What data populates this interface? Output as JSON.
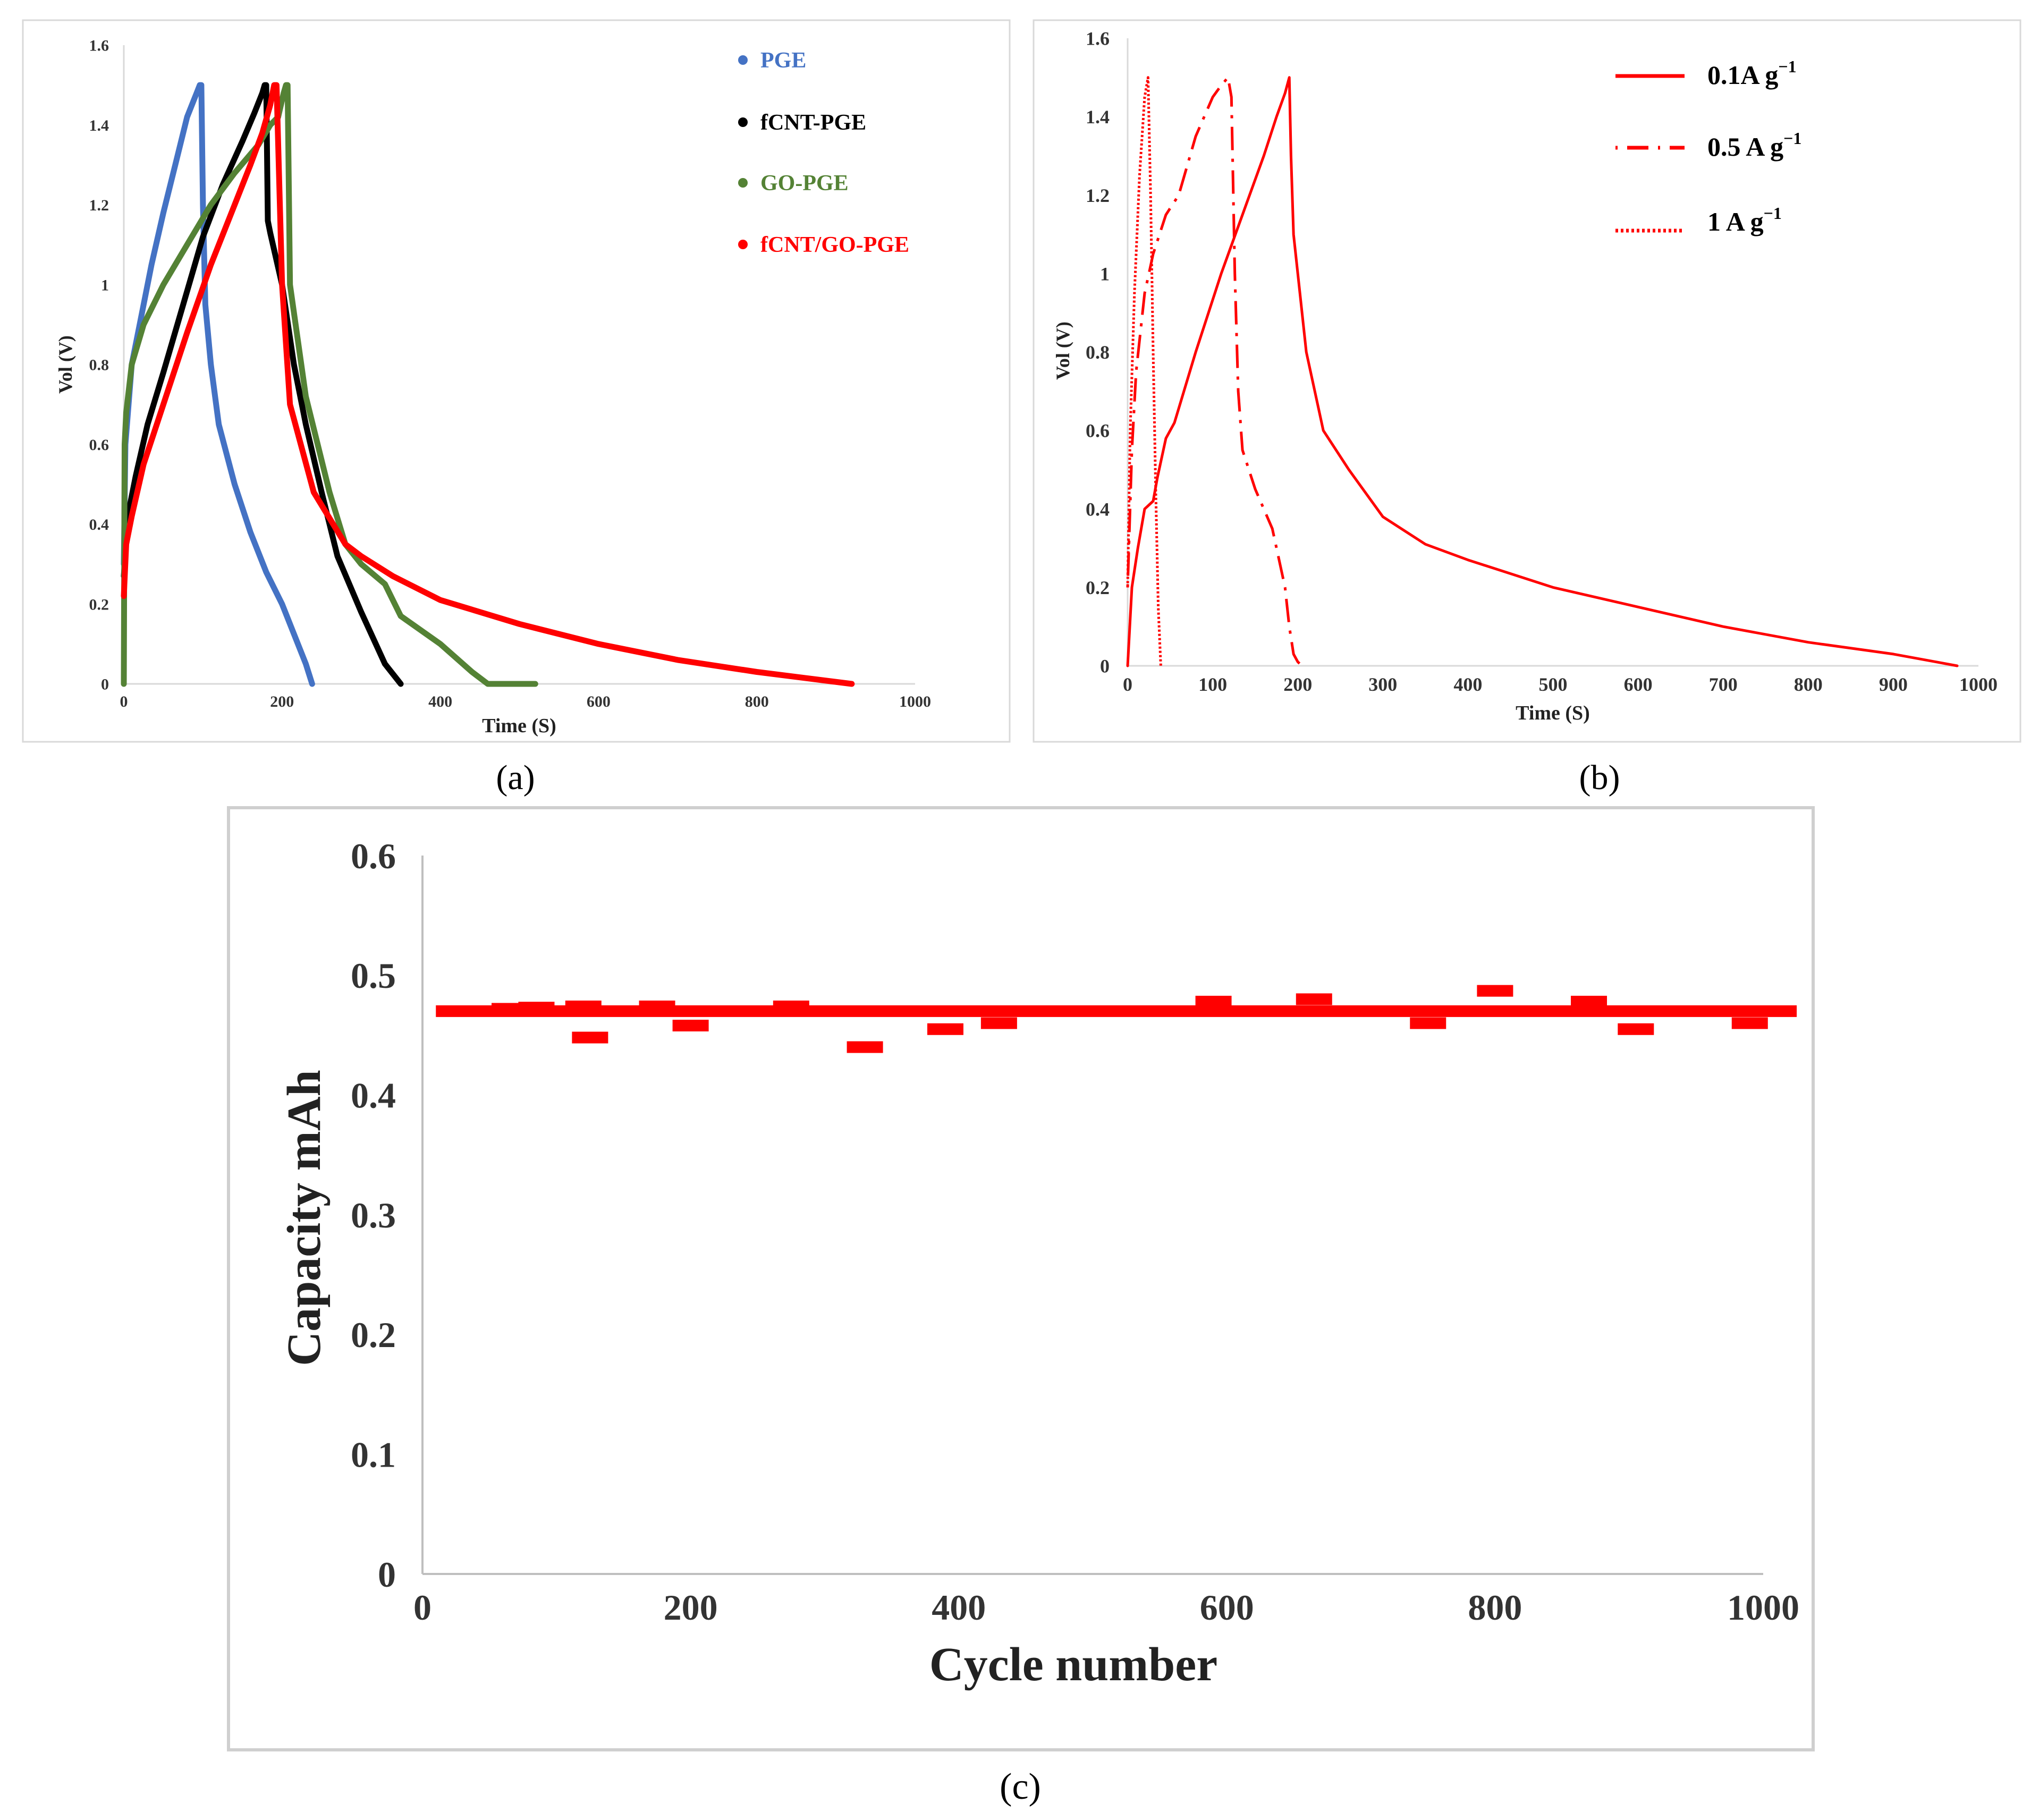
{
  "colors": {
    "pge": "#4472c4",
    "fcnt_pge": "#000000",
    "go_pge": "#548235",
    "fcnt_go_pge": "#ff0000",
    "rate": "#ff0000",
    "capacity": "#ff0000"
  },
  "panels": {
    "a_label": "(a)",
    "b_label": "(b)",
    "c_label": "(c)"
  },
  "chart_data": [
    {
      "id": "a",
      "type": "line",
      "title": "",
      "xlabel": "Time (S)",
      "ylabel": "Vol (V)",
      "xlim": [
        0,
        1000
      ],
      "ylim": [
        0,
        1.6
      ],
      "xticks": [
        "0",
        "200",
        "400",
        "600",
        "800",
        "1000"
      ],
      "xtick_values": [
        0,
        200,
        400,
        600,
        800,
        1000
      ],
      "yticks": [
        "0",
        "0.2",
        "0.4",
        "0.6",
        "0.8",
        "1",
        "1.2",
        "1.4",
        "1.6"
      ],
      "ytick_values": [
        0,
        0.2,
        0.4,
        0.6,
        0.8,
        1.0,
        1.2,
        1.4,
        1.6
      ],
      "legend_position": "top-right",
      "series": [
        {
          "name": "PGE",
          "color": "#4472c4",
          "x": [
            0,
            2,
            10,
            20,
            35,
            50,
            65,
            80,
            88,
            92,
            96,
            98,
            100,
            103,
            110,
            120,
            140,
            160,
            180,
            200,
            220,
            230,
            238
          ],
          "y": [
            0.3,
            0.6,
            0.8,
            0.9,
            1.05,
            1.18,
            1.3,
            1.42,
            1.46,
            1.48,
            1.5,
            1.5,
            1.2,
            0.95,
            0.8,
            0.65,
            0.5,
            0.38,
            0.28,
            0.2,
            0.1,
            0.05,
            0
          ]
        },
        {
          "name": "fCNT-PGE",
          "color": "#000000",
          "x": [
            0,
            5,
            15,
            30,
            50,
            75,
            100,
            125,
            150,
            165,
            175,
            178,
            180,
            182,
            185,
            200,
            215,
            230,
            250,
            270,
            300,
            330,
            350
          ],
          "y": [
            0.27,
            0.42,
            0.52,
            0.65,
            0.78,
            0.95,
            1.12,
            1.25,
            1.36,
            1.43,
            1.48,
            1.5,
            1.5,
            1.16,
            1.13,
            1.0,
            0.8,
            0.65,
            0.48,
            0.32,
            0.18,
            0.05,
            0
          ]
        },
        {
          "name": "GO-PGE",
          "color": "#548235",
          "x": [
            0,
            1,
            3,
            10,
            25,
            50,
            80,
            110,
            140,
            170,
            185,
            195,
            202,
            205,
            207,
            210,
            230,
            260,
            280,
            300,
            330,
            350,
            400,
            440,
            460,
            500,
            520
          ],
          "y": [
            0,
            0.6,
            0.68,
            0.8,
            0.9,
            1.0,
            1.1,
            1.2,
            1.28,
            1.35,
            1.4,
            1.42,
            1.48,
            1.5,
            1.5,
            1.0,
            0.72,
            0.48,
            0.35,
            0.3,
            0.25,
            0.17,
            0.1,
            0.03,
            0.0,
            0.0,
            0.0
          ]
        },
        {
          "name": "fCNT/GO-PGE",
          "color": "#ff0000",
          "x": [
            0,
            3,
            10,
            25,
            50,
            80,
            110,
            140,
            160,
            175,
            185,
            190,
            193,
            200,
            210,
            240,
            280,
            300,
            340,
            400,
            500,
            600,
            700,
            800,
            880,
            920
          ],
          "y": [
            0.22,
            0.35,
            0.42,
            0.55,
            0.7,
            0.88,
            1.05,
            1.2,
            1.3,
            1.38,
            1.45,
            1.5,
            1.5,
            1.0,
            0.7,
            0.48,
            0.35,
            0.32,
            0.27,
            0.21,
            0.15,
            0.1,
            0.06,
            0.03,
            0.01,
            0
          ]
        }
      ]
    },
    {
      "id": "b",
      "type": "line",
      "title": "",
      "xlabel": "Time (S)",
      "ylabel": "Vol (V)",
      "xlim": [
        0,
        1000
      ],
      "ylim": [
        0,
        1.6
      ],
      "xticks": [
        "0",
        "100",
        "200",
        "300",
        "400",
        "500",
        "600",
        "700",
        "800",
        "900",
        "1000"
      ],
      "xtick_values": [
        0,
        100,
        200,
        300,
        400,
        500,
        600,
        700,
        800,
        900,
        1000
      ],
      "yticks": [
        "0",
        "0.2",
        "0.4",
        "0.6",
        "0.8",
        "1",
        "1.2",
        "1.4",
        "1.6"
      ],
      "ytick_values": [
        0,
        0.2,
        0.4,
        0.6,
        0.8,
        1.0,
        1.2,
        1.4,
        1.6
      ],
      "legend_position": "top-right",
      "legend_labels": {
        "s1_main": "0.1A g",
        "s1_sup": "−1",
        "s2_main": "0.5 A g",
        "s2_sup": "−1",
        "s3_main": "1 A g",
        "s3_sup": "−1"
      },
      "series": [
        {
          "name": "0.1A g−1",
          "style": "solid",
          "color": "#ff0000",
          "x": [
            0,
            5,
            12,
            20,
            30,
            35,
            45,
            55,
            80,
            110,
            140,
            160,
            175,
            185,
            190,
            192,
            195,
            200,
            210,
            230,
            260,
            300,
            350,
            400,
            500,
            600,
            700,
            800,
            900,
            950,
            975
          ],
          "y": [
            0,
            0.2,
            0.3,
            0.4,
            0.42,
            0.48,
            0.58,
            0.62,
            0.8,
            1.0,
            1.18,
            1.3,
            1.4,
            1.46,
            1.5,
            1.3,
            1.1,
            1.0,
            0.8,
            0.6,
            0.5,
            0.38,
            0.31,
            0.27,
            0.2,
            0.15,
            0.1,
            0.06,
            0.03,
            0.01,
            0
          ]
        },
        {
          "name": "0.5 A g−1",
          "style": "dashdot",
          "color": "#ff0000",
          "x": [
            0,
            5,
            10,
            20,
            30,
            45,
            60,
            80,
            100,
            110,
            118,
            122,
            126,
            130,
            135,
            150,
            170,
            185,
            190,
            195,
            200,
            205
          ],
          "y": [
            0.2,
            0.55,
            0.75,
            0.95,
            1.05,
            1.15,
            1.2,
            1.35,
            1.45,
            1.48,
            1.5,
            1.45,
            1.0,
            0.7,
            0.55,
            0.45,
            0.35,
            0.2,
            0.1,
            0.03,
            0.01,
            0
          ]
        },
        {
          "name": "1 A g−1",
          "style": "dotted",
          "color": "#ff0000",
          "x": [
            0,
            3,
            8,
            14,
            20,
            24,
            27,
            30,
            33,
            36,
            39
          ],
          "y": [
            0.2,
            0.6,
            0.95,
            1.25,
            1.45,
            1.5,
            1.2,
            0.8,
            0.45,
            0.15,
            0
          ]
        }
      ]
    },
    {
      "id": "c",
      "type": "line",
      "title": "",
      "xlabel": "Cycle number",
      "ylabel": "Capacity mAh",
      "xlim": [
        0,
        1000
      ],
      "ylim": [
        0,
        0.6
      ],
      "xticks": [
        "0",
        "200",
        "400",
        "600",
        "800",
        "1000"
      ],
      "xtick_values": [
        0,
        200,
        400,
        600,
        800,
        1000
      ],
      "yticks": [
        "0",
        "0.1",
        "0.2",
        "0.3",
        "0.4",
        "0.5",
        "0.6"
      ],
      "ytick_values": [
        0,
        0.1,
        0.2,
        0.3,
        0.4,
        0.5,
        0.6
      ],
      "baseline_value": 0.47,
      "baseline_x": [
        10,
        1025
      ],
      "markers": [
        {
          "x": 65,
          "y": 0.472
        },
        {
          "x": 85,
          "y": 0.473
        },
        {
          "x": 120,
          "y": 0.474
        },
        {
          "x": 125,
          "y": 0.448
        },
        {
          "x": 175,
          "y": 0.474
        },
        {
          "x": 200,
          "y": 0.458
        },
        {
          "x": 275,
          "y": 0.474
        },
        {
          "x": 330,
          "y": 0.44
        },
        {
          "x": 390,
          "y": 0.455
        },
        {
          "x": 430,
          "y": 0.46
        },
        {
          "x": 590,
          "y": 0.478
        },
        {
          "x": 665,
          "y": 0.48
        },
        {
          "x": 750,
          "y": 0.46
        },
        {
          "x": 800,
          "y": 0.487
        },
        {
          "x": 870,
          "y": 0.478
        },
        {
          "x": 905,
          "y": 0.455
        },
        {
          "x": 990,
          "y": 0.46
        }
      ]
    }
  ]
}
